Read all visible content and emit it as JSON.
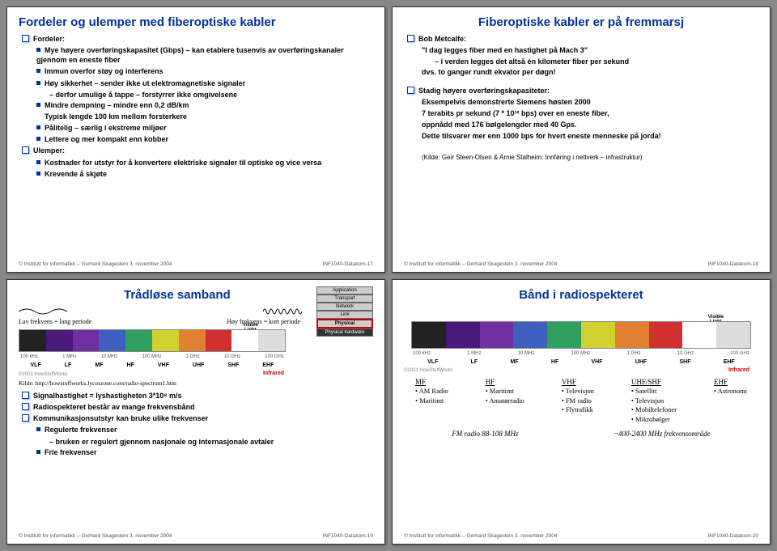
{
  "footer": {
    "left": "Institutt for informatikk – Gerhard Skagestein 3. november 2004",
    "p17": "INF1040-Datakom-17",
    "p18": "INF1040-Datakom-18",
    "p19": "INF1040-Datakom-19",
    "p20": "INF1040-Datakom-20"
  },
  "s17": {
    "title": "Fordeler og ulemper med fiberoptiske kabler",
    "l1a": "Fordeler:",
    "l2a": "Mye høyere overføringskapasitet (Gbps) – kan etablere tusenvis av overføringskanaler gjennom en eneste fiber",
    "l2b": "Immun overfor støy og interferens",
    "l2c": "Høy sikkerhet – sender ikke ut elektromagnetiske signaler",
    "l3c": "derfor umulige å tappe – forstyrrer ikke omgivelsene",
    "l2d": "Mindre dempning – mindre enn 0,2 dB/km",
    "l2d2": "Typisk lengde 100 km mellom forsterkere",
    "l2e": "Pålitelig – særlig i ekstreme miljøer",
    "l2f": "Lettere og mer kompakt enn kobber",
    "l1b": "Ulemper:",
    "l2g": "Kostnader for utstyr for å konvertere elektriske signaler til optiske og vice versa",
    "l2h": "Krevende å skjøte"
  },
  "s18": {
    "title": "Fiberoptiske kabler er på fremmarsj",
    "l1a": "Bob Metcalfe:",
    "l2a": "\"I dag legges fiber med en hastighet på Mach 3\"",
    "l3a": "i verden legges det altså én kilometer fiber per sekund",
    "l2b": "dvs. to ganger rundt ekvator per døgn!",
    "l1b": "Stadig høyere overføringskapasiteter:",
    "l2c": "Eksempelvis demonstrerte Siemens høsten 2000",
    "l2d": "7 terabits pr sekund (7 * 10¹² bps) over en eneste fiber,",
    "l2e": "oppnådd med 176 bølgelengder med 40 Gps.",
    "l2f": "Dette tilsvarer mer enn 1000 bps for hvert eneste menneske på jorda!",
    "src": "(Kilde: Geir Steen-Olsen & Arnie Stalheim: Innføring i nettverk – infrastruktur)"
  },
  "s19": {
    "title": "Trådløse samband",
    "lav": "Lav frekvens = lang periode",
    "hoy": "Høy frekvens = kort periode",
    "kilde": "Kilde: http://howstuffworks.lycoszone.com/radio-spectrum1.htm",
    "l1a": "Signalhastighet = lyshastigheten 3*10⁸ m/s",
    "l1b": "Radiospekteret består av mange frekvensbånd",
    "l1c": "Kommunikasjonsutstyr kan bruke ulike frekvenser",
    "l2a": "Regulerte frekvenser",
    "l3a": "bruken er regulert gjennom nasjonale og internasjonale avtaler",
    "l2b": "Frie frekvenser",
    "layers": {
      "app": "Application",
      "tr": "Transport",
      "nw": "Network",
      "ln": "Link",
      "ph": "Physical",
      "hw": "Physical hardware"
    },
    "vislight": "Visible\nLight",
    "infrared": "Infrared"
  },
  "s20": {
    "title": "Bånd i radiospekteret",
    "mf": {
      "h": "MF",
      "a": "AM Radio",
      "b": "Maritimt"
    },
    "hf": {
      "h": "HF",
      "a": "Maritimt",
      "b": "Amatørradio"
    },
    "vhf": {
      "h": "VHF",
      "a": "Televisjon",
      "b": "FM radio",
      "c": "Flytrafikk"
    },
    "uhf": {
      "h": "UHF/SHF",
      "a": "Satellitt",
      "b": "Televisjon",
      "c": "Mobiltelefoner",
      "d": "Mikrobølger"
    },
    "ehf": {
      "h": "EHF",
      "a": "Astronomi"
    },
    "n1": "FM radio 88-108 MHz",
    "n2": "~400-2400 MHz frekvensområde",
    "vislight": "Visible\nLight",
    "infrared": "Infrared"
  },
  "spectrum": {
    "copyright": "©2001 HowStuffWorks",
    "freqs": [
      "100 kHz",
      "1 MHz",
      "10 MHz",
      "100 MHz",
      "1 GHz",
      "10 GHz",
      "100 GHz"
    ],
    "bands": [
      "VLF",
      "LF",
      "MF",
      "HF",
      "VHF",
      "UHF",
      "SHF",
      "EHF"
    ],
    "colors": [
      "#222222",
      "#4a1a7a",
      "#7030a0",
      "#4060c0",
      "#30a060",
      "#d0d030",
      "#e08030",
      "#d03030",
      "#ffffff",
      "#dddddd"
    ]
  }
}
